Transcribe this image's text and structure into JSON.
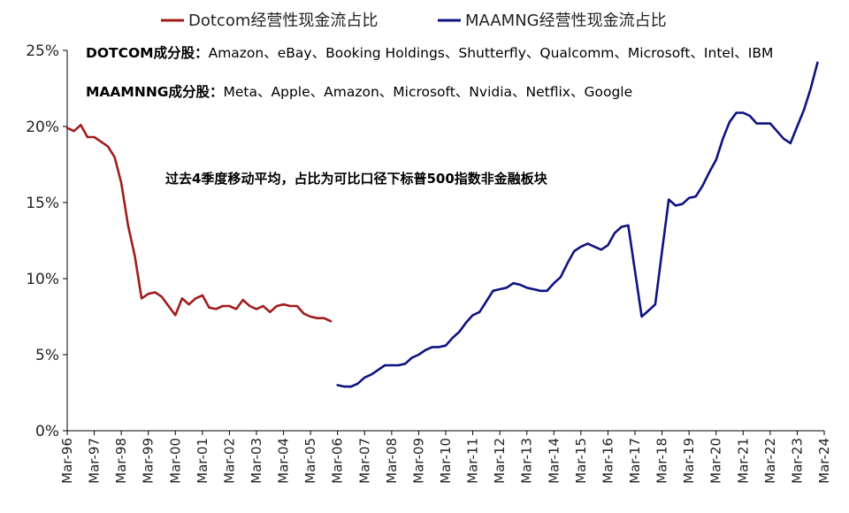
{
  "chart_data": {
    "type": "line",
    "xlabel": "",
    "ylabel": "",
    "ylim": [
      0,
      25
    ],
    "yticks": [
      "0%",
      "5%",
      "10%",
      "15%",
      "20%",
      "25%"
    ],
    "xticks": [
      "Mar-96",
      "Mar-97",
      "Mar-98",
      "Mar-99",
      "Mar-00",
      "Mar-01",
      "Mar-02",
      "Mar-03",
      "Mar-04",
      "Mar-05",
      "Mar-06",
      "Mar-07",
      "Mar-08",
      "Mar-09",
      "Mar-10",
      "Mar-11",
      "Mar-12",
      "Mar-13",
      "Mar-14",
      "Mar-15",
      "Mar-16",
      "Mar-17",
      "Mar-18",
      "Mar-19",
      "Mar-20",
      "Mar-21",
      "Mar-22",
      "Mar-23",
      "Mar-24"
    ],
    "legend": {
      "placement": "top"
    },
    "notes": {
      "dotcom_label": "DOTCOM成分股：",
      "dotcom_members": "Amazon、eBay、Booking Holdings、Shutterfly、Qualcomm、Microsoft、Intel、IBM",
      "maamnng_label": "MAAMNNG成分股：",
      "maamnng_members": "Meta、Apple、Amazon、Microsoft、Nvidia、Netflix、Google",
      "center": "过去4季度移动平均，占比为可比口径下标普500指数非金融板块"
    },
    "series": [
      {
        "name": "Dotcom经营性现金流占比",
        "color": "#A01C1C",
        "points": [
          [
            1996.0,
            19.9
          ],
          [
            1996.25,
            19.7
          ],
          [
            1996.5,
            20.1
          ],
          [
            1996.75,
            19.3
          ],
          [
            1997.0,
            19.3
          ],
          [
            1997.25,
            19.0
          ],
          [
            1997.5,
            18.7
          ],
          [
            1997.75,
            18.0
          ],
          [
            1998.0,
            16.3
          ],
          [
            1998.25,
            13.5
          ],
          [
            1998.5,
            11.5
          ],
          [
            1998.75,
            8.7
          ],
          [
            1999.0,
            9.0
          ],
          [
            1999.25,
            9.1
          ],
          [
            1999.5,
            8.8
          ],
          [
            1999.75,
            8.2
          ],
          [
            2000.0,
            7.6
          ],
          [
            2000.25,
            8.7
          ],
          [
            2000.5,
            8.3
          ],
          [
            2000.75,
            8.7
          ],
          [
            2001.0,
            8.9
          ],
          [
            2001.25,
            8.1
          ],
          [
            2001.5,
            8.0
          ],
          [
            2001.75,
            8.2
          ],
          [
            2002.0,
            8.2
          ],
          [
            2002.25,
            8.0
          ],
          [
            2002.5,
            8.6
          ],
          [
            2002.75,
            8.2
          ],
          [
            2003.0,
            8.0
          ],
          [
            2003.25,
            8.2
          ],
          [
            2003.5,
            7.8
          ],
          [
            2003.75,
            8.2
          ],
          [
            2004.0,
            8.3
          ],
          [
            2004.25,
            8.2
          ],
          [
            2004.5,
            8.2
          ],
          [
            2004.75,
            7.7
          ],
          [
            2005.0,
            7.5
          ],
          [
            2005.25,
            7.4
          ],
          [
            2005.5,
            7.4
          ],
          [
            2005.75,
            7.2
          ]
        ]
      },
      {
        "name": "MAAMNG经营性现金流占比",
        "color": "#0E1280",
        "points": [
          [
            2006.0,
            3.0
          ],
          [
            2006.25,
            2.9
          ],
          [
            2006.5,
            2.9
          ],
          [
            2006.75,
            3.1
          ],
          [
            2007.0,
            3.5
          ],
          [
            2007.25,
            3.7
          ],
          [
            2007.5,
            4.0
          ],
          [
            2007.75,
            4.3
          ],
          [
            2008.0,
            4.3
          ],
          [
            2008.25,
            4.3
          ],
          [
            2008.5,
            4.4
          ],
          [
            2008.75,
            4.8
          ],
          [
            2009.0,
            5.0
          ],
          [
            2009.25,
            5.3
          ],
          [
            2009.5,
            5.5
          ],
          [
            2009.75,
            5.5
          ],
          [
            2010.0,
            5.6
          ],
          [
            2010.25,
            6.1
          ],
          [
            2010.5,
            6.5
          ],
          [
            2010.75,
            7.1
          ],
          [
            2011.0,
            7.6
          ],
          [
            2011.25,
            7.8
          ],
          [
            2011.5,
            8.5
          ],
          [
            2011.75,
            9.2
          ],
          [
            2012.0,
            9.3
          ],
          [
            2012.25,
            9.4
          ],
          [
            2012.5,
            9.7
          ],
          [
            2012.75,
            9.6
          ],
          [
            2013.0,
            9.4
          ],
          [
            2013.25,
            9.3
          ],
          [
            2013.5,
            9.2
          ],
          [
            2013.75,
            9.2
          ],
          [
            2014.0,
            9.7
          ],
          [
            2014.25,
            10.1
          ],
          [
            2014.5,
            11.0
          ],
          [
            2014.75,
            11.8
          ],
          [
            2015.0,
            12.1
          ],
          [
            2015.25,
            12.3
          ],
          [
            2015.5,
            12.1
          ],
          [
            2015.75,
            11.9
          ],
          [
            2016.0,
            12.2
          ],
          [
            2016.25,
            13.0
          ],
          [
            2016.5,
            13.4
          ],
          [
            2016.75,
            13.5
          ],
          [
            2017.0,
            10.5
          ],
          [
            2017.25,
            7.5
          ],
          [
            2017.5,
            7.9
          ],
          [
            2017.75,
            8.3
          ],
          [
            2018.0,
            11.8
          ],
          [
            2018.25,
            15.2
          ],
          [
            2018.5,
            14.8
          ],
          [
            2018.75,
            14.9
          ],
          [
            2019.0,
            15.3
          ],
          [
            2019.25,
            15.4
          ],
          [
            2019.5,
            16.1
          ],
          [
            2019.75,
            17.0
          ],
          [
            2020.0,
            17.8
          ],
          [
            2020.25,
            19.2
          ],
          [
            2020.5,
            20.3
          ],
          [
            2020.75,
            20.9
          ],
          [
            2021.0,
            20.9
          ],
          [
            2021.25,
            20.7
          ],
          [
            2021.5,
            20.2
          ],
          [
            2021.75,
            20.2
          ],
          [
            2022.0,
            20.2
          ],
          [
            2022.25,
            19.7
          ],
          [
            2022.5,
            19.2
          ],
          [
            2022.75,
            18.9
          ],
          [
            2023.0,
            20.0
          ],
          [
            2023.25,
            21.1
          ],
          [
            2023.5,
            22.5
          ],
          [
            2023.75,
            24.2
          ]
        ]
      }
    ]
  }
}
